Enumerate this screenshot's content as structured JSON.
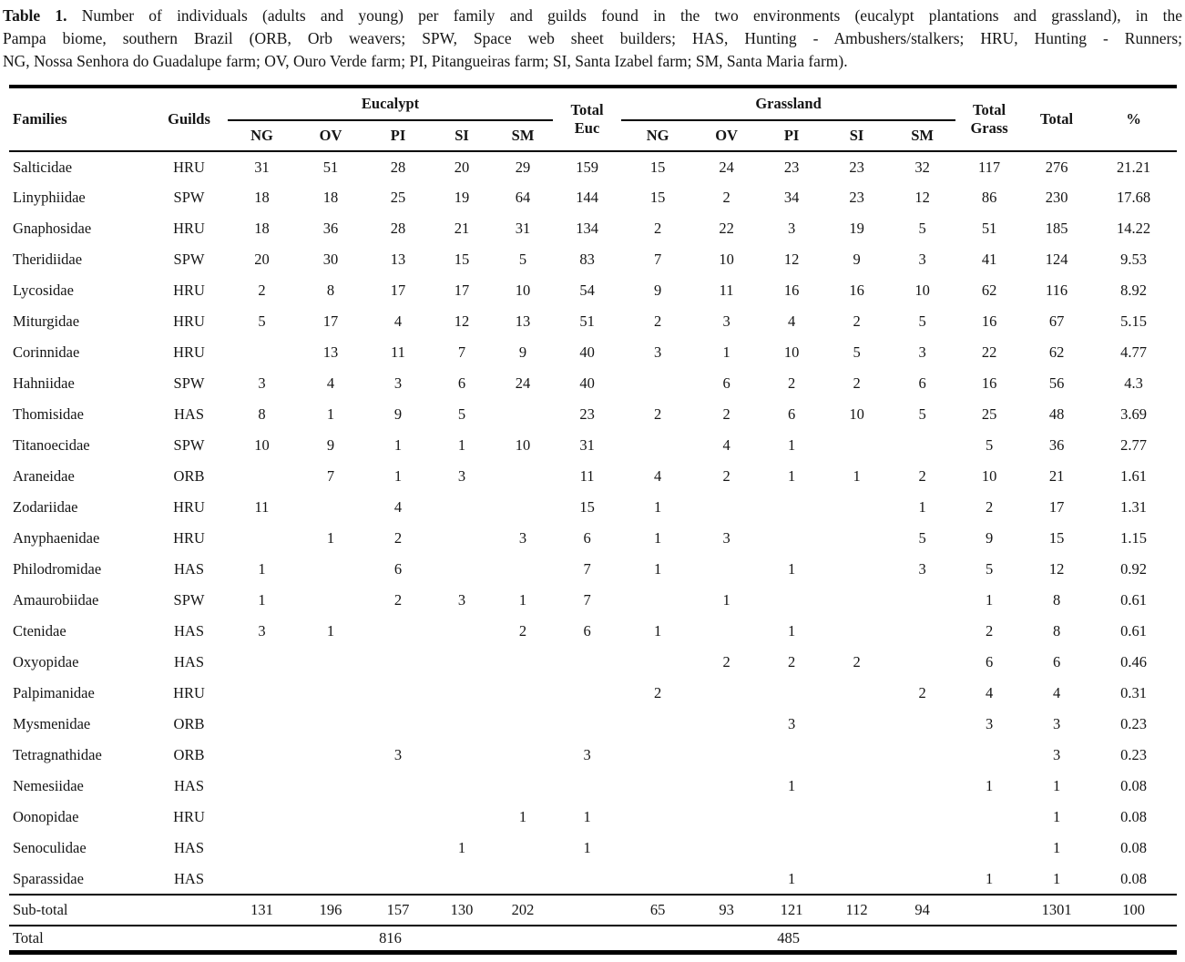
{
  "caption": {
    "label": "Table 1.",
    "line1_rest": " Number of individuals (adults and young) per family and guilds found in the two environments (eucalypt plantations and grassland), in the",
    "line2": "Pampa biome, southern Brazil (ORB, Orb weavers; SPW, Space web sheet builders; HAS, Hunting - Ambushers/stalkers; HRU, Hunting - Runners;",
    "line3": "NG, Nossa Senhora do Guadalupe farm; OV, Ouro Verde farm; PI, Pitangueiras farm; SI, Santa Izabel farm; SM, Santa Maria farm)."
  },
  "table": {
    "headers": {
      "families": "Families",
      "guilds": "Guilds",
      "eucalypt": "Eucalypt",
      "grassland": "Grassland",
      "total_euc": "Total\nEuc",
      "total_grass": "Total\nGrass",
      "farm_cols": [
        "NG",
        "OV",
        "PI",
        "SI",
        "SM"
      ],
      "total": "Total",
      "percent": "%"
    },
    "rows": [
      {
        "family": "Salticidae",
        "guild": "HRU",
        "euc": [
          "31",
          "51",
          "28",
          "20",
          "29"
        ],
        "total_euc": "159",
        "grass": [
          "15",
          "24",
          "23",
          "23",
          "32"
        ],
        "total_grass": "117",
        "total": "276",
        "pct": "21.21"
      },
      {
        "family": "Linyphiidae",
        "guild": "SPW",
        "euc": [
          "18",
          "18",
          "25",
          "19",
          "64"
        ],
        "total_euc": "144",
        "grass": [
          "15",
          "2",
          "34",
          "23",
          "12"
        ],
        "total_grass": "86",
        "total": "230",
        "pct": "17.68"
      },
      {
        "family": "Gnaphosidae",
        "guild": "HRU",
        "euc": [
          "18",
          "36",
          "28",
          "21",
          "31"
        ],
        "total_euc": "134",
        "grass": [
          "2",
          "22",
          "3",
          "19",
          "5"
        ],
        "total_grass": "51",
        "total": "185",
        "pct": "14.22"
      },
      {
        "family": "Theridiidae",
        "guild": "SPW",
        "euc": [
          "20",
          "30",
          "13",
          "15",
          "5"
        ],
        "total_euc": "83",
        "grass": [
          "7",
          "10",
          "12",
          "9",
          "3"
        ],
        "total_grass": "41",
        "total": "124",
        "pct": "9.53"
      },
      {
        "family": "Lycosidae",
        "guild": "HRU",
        "euc": [
          "2",
          "8",
          "17",
          "17",
          "10"
        ],
        "total_euc": "54",
        "grass": [
          "9",
          "11",
          "16",
          "16",
          "10"
        ],
        "total_grass": "62",
        "total": "116",
        "pct": "8.92"
      },
      {
        "family": "Miturgidae",
        "guild": "HRU",
        "euc": [
          "5",
          "17",
          "4",
          "12",
          "13"
        ],
        "total_euc": "51",
        "grass": [
          "2",
          "3",
          "4",
          "2",
          "5"
        ],
        "total_grass": "16",
        "total": "67",
        "pct": "5.15"
      },
      {
        "family": "Corinnidae",
        "guild": "HRU",
        "euc": [
          "",
          "13",
          "11",
          "7",
          "9"
        ],
        "total_euc": "40",
        "grass": [
          "3",
          "1",
          "10",
          "5",
          "3"
        ],
        "total_grass": "22",
        "total": "62",
        "pct": "4.77"
      },
      {
        "family": "Hahniidae",
        "guild": "SPW",
        "euc": [
          "3",
          "4",
          "3",
          "6",
          "24"
        ],
        "total_euc": "40",
        "grass": [
          "",
          "6",
          "2",
          "2",
          "6"
        ],
        "total_grass": "16",
        "total": "56",
        "pct": "4.3"
      },
      {
        "family": "Thomisidae",
        "guild": "HAS",
        "euc": [
          "8",
          "1",
          "9",
          "5",
          ""
        ],
        "total_euc": "23",
        "grass": [
          "2",
          "2",
          "6",
          "10",
          "5"
        ],
        "total_grass": "25",
        "total": "48",
        "pct": "3.69"
      },
      {
        "family": "Titanoecidae",
        "guild": "SPW",
        "euc": [
          "10",
          "9",
          "1",
          "1",
          "10"
        ],
        "total_euc": "31",
        "grass": [
          "",
          "4",
          "1",
          "",
          ""
        ],
        "total_grass": "5",
        "total": "36",
        "pct": "2.77"
      },
      {
        "family": "Araneidae",
        "guild": "ORB",
        "euc": [
          "",
          "7",
          "1",
          "3",
          ""
        ],
        "total_euc": "11",
        "grass": [
          "4",
          "2",
          "1",
          "1",
          "2"
        ],
        "total_grass": "10",
        "total": "21",
        "pct": "1.61"
      },
      {
        "family": "Zodariidae",
        "guild": "HRU",
        "euc": [
          "11",
          "",
          "4",
          "",
          ""
        ],
        "total_euc": "15",
        "grass": [
          "1",
          "",
          "",
          "",
          "1"
        ],
        "total_grass": "2",
        "total": "17",
        "pct": "1.31"
      },
      {
        "family": "Anyphaenidae",
        "guild": "HRU",
        "euc": [
          "",
          "1",
          "2",
          "",
          "3"
        ],
        "total_euc": "6",
        "grass": [
          "1",
          "3",
          "",
          "",
          "5"
        ],
        "total_grass": "9",
        "total": "15",
        "pct": "1.15"
      },
      {
        "family": "Philodromidae",
        "guild": "HAS",
        "euc": [
          "1",
          "",
          "6",
          "",
          ""
        ],
        "total_euc": "7",
        "grass": [
          "1",
          "",
          "1",
          "",
          "3"
        ],
        "total_grass": "5",
        "total": "12",
        "pct": "0.92"
      },
      {
        "family": "Amaurobiidae",
        "guild": "SPW",
        "euc": [
          "1",
          "",
          "2",
          "3",
          "1"
        ],
        "total_euc": "7",
        "grass": [
          "",
          "1",
          "",
          "",
          ""
        ],
        "total_grass": "1",
        "total": "8",
        "pct": "0.61"
      },
      {
        "family": "Ctenidae",
        "guild": "HAS",
        "euc": [
          "3",
          "1",
          "",
          "",
          "2"
        ],
        "total_euc": "6",
        "grass": [
          "1",
          "",
          "1",
          "",
          ""
        ],
        "total_grass": "2",
        "total": "8",
        "pct": "0.61"
      },
      {
        "family": "Oxyopidae",
        "guild": "HAS",
        "euc": [
          "",
          "",
          "",
          "",
          ""
        ],
        "total_euc": "",
        "grass": [
          "",
          "2",
          "2",
          "2",
          ""
        ],
        "total_grass": "6",
        "total": "6",
        "pct": "0.46"
      },
      {
        "family": "Palpimanidae",
        "guild": "HRU",
        "euc": [
          "",
          "",
          "",
          "",
          ""
        ],
        "total_euc": "",
        "grass": [
          "2",
          "",
          "",
          "",
          "2"
        ],
        "total_grass": "4",
        "total": "4",
        "pct": "0.31"
      },
      {
        "family": "Mysmenidae",
        "guild": "ORB",
        "euc": [
          "",
          "",
          "",
          "",
          ""
        ],
        "total_euc": "",
        "grass": [
          "",
          "",
          "3",
          "",
          ""
        ],
        "total_grass": "3",
        "total": "3",
        "pct": "0.23"
      },
      {
        "family": "Tetragnathidae",
        "guild": "ORB",
        "euc": [
          "",
          "",
          "3",
          "",
          ""
        ],
        "total_euc": "3",
        "grass": [
          "",
          "",
          "",
          "",
          ""
        ],
        "total_grass": "",
        "total": "3",
        "pct": "0.23"
      },
      {
        "family": "Nemesiidae",
        "guild": "HAS",
        "euc": [
          "",
          "",
          "",
          "",
          ""
        ],
        "total_euc": "",
        "grass": [
          "",
          "",
          "1",
          "",
          ""
        ],
        "total_grass": "1",
        "total": "1",
        "pct": "0.08"
      },
      {
        "family": "Oonopidae",
        "guild": "HRU",
        "euc": [
          "",
          "",
          "",
          "",
          "1"
        ],
        "total_euc": "1",
        "grass": [
          "",
          "",
          "",
          "",
          ""
        ],
        "total_grass": "",
        "total": "1",
        "pct": "0.08"
      },
      {
        "family": "Senoculidae",
        "guild": "HAS",
        "euc": [
          "",
          "",
          "",
          "1",
          ""
        ],
        "total_euc": "1",
        "grass": [
          "",
          "",
          "",
          "",
          ""
        ],
        "total_grass": "",
        "total": "1",
        "pct": "0.08"
      },
      {
        "family": "Sparassidae",
        "guild": "HAS",
        "euc": [
          "",
          "",
          "",
          "",
          ""
        ],
        "total_euc": "",
        "grass": [
          "",
          "",
          "1",
          "",
          ""
        ],
        "total_grass": "1",
        "total": "1",
        "pct": "0.08"
      }
    ],
    "subtotal": {
      "label": "Sub-total",
      "euc": [
        "131",
        "196",
        "157",
        "130",
        "202"
      ],
      "grass": [
        "65",
        "93",
        "121",
        "112",
        "94"
      ],
      "total": "1301",
      "pct": "100"
    },
    "grand_total": {
      "label": "Total",
      "euc": "816",
      "grass": "485"
    }
  }
}
